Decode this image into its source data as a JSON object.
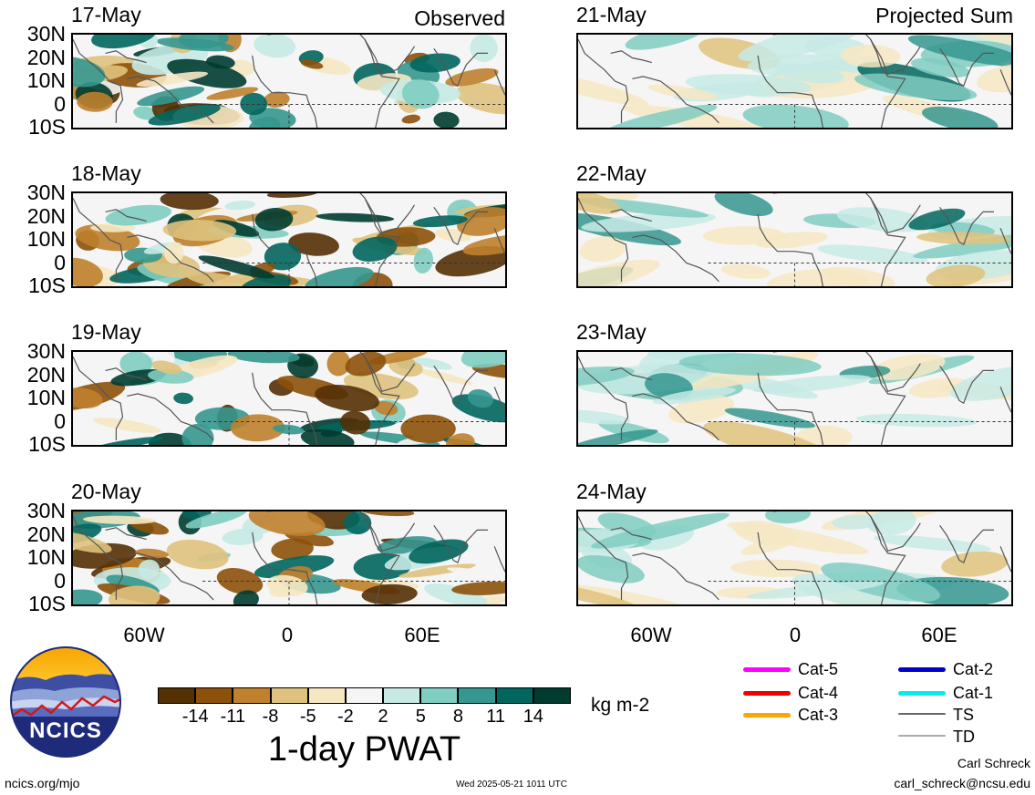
{
  "headers": {
    "left": "Observed",
    "right": "Projected Sum"
  },
  "panels_left": [
    {
      "date": "17-May"
    },
    {
      "date": "18-May"
    },
    {
      "date": "19-May"
    },
    {
      "date": "20-May"
    }
  ],
  "panels_right": [
    {
      "date": "21-May"
    },
    {
      "date": "22-May"
    },
    {
      "date": "23-May"
    },
    {
      "date": "24-May"
    }
  ],
  "lat_labels": [
    "30N",
    "20N",
    "10N",
    "0",
    "10S"
  ],
  "lon_labels": [
    "60W",
    "0",
    "60E"
  ],
  "colorbar": {
    "title": "1-day PWAT",
    "units": "kg m-2",
    "ticks": [
      "-14",
      "-11",
      "-8",
      "-5",
      "-2",
      "2",
      "5",
      "8",
      "11",
      "14"
    ],
    "colors": [
      "#543005",
      "#8c510a",
      "#bf812d",
      "#dfc27d",
      "#f6e8c3",
      "#f5f5f5",
      "#c7eae5",
      "#80cdc1",
      "#35978f",
      "#01665e",
      "#003c30"
    ]
  },
  "storm_legend": [
    {
      "label": "Cat-5",
      "color": "#ff00ff"
    },
    {
      "label": "Cat-4",
      "color": "#ee0000"
    },
    {
      "label": "Cat-3",
      "color": "#ffa500"
    },
    {
      "label": "Cat-2",
      "color": "#0000cc"
    },
    {
      "label": "Cat-1",
      "color": "#00eeee"
    },
    {
      "label": "TS",
      "color": "#666666"
    },
    {
      "label": "TD",
      "color": "#aaaaaa"
    }
  ],
  "logo": {
    "text": "NCICS"
  },
  "footer": {
    "url": "ncics.org/mjo",
    "timestamp": "Wed 2025-05-21 1011 UTC",
    "author": "Carl Schreck",
    "email": "carl_schreck@ncsu.edu"
  }
}
